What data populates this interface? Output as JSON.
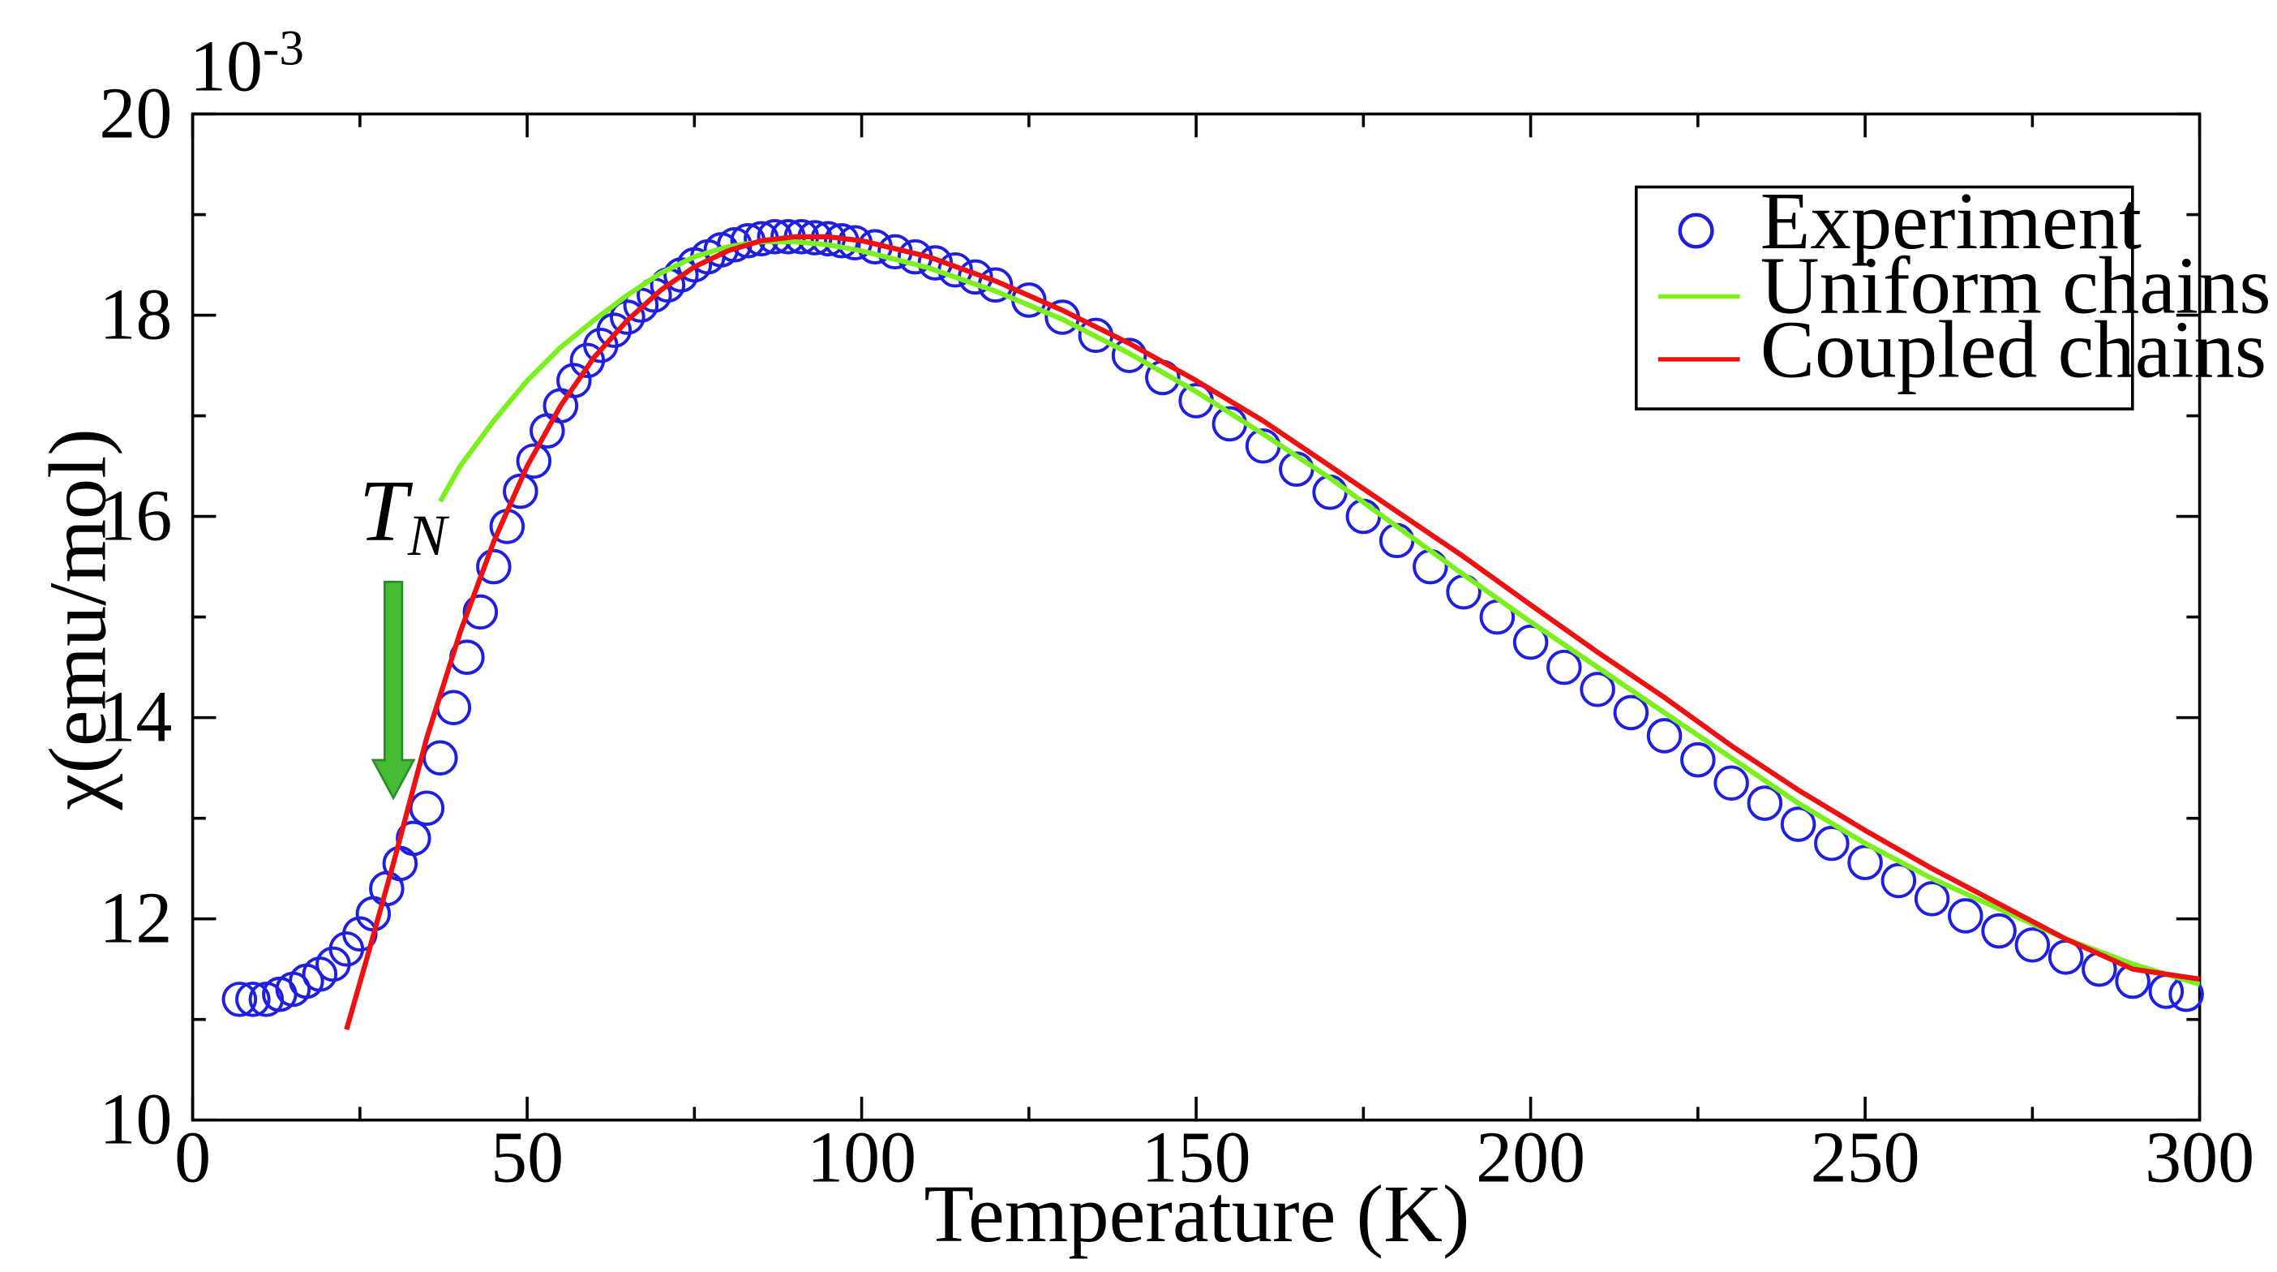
{
  "chart_data": {
    "type": "scatter",
    "title": "",
    "xlabel": "Temperature (K)",
    "ylabel": "χ(emu/mol)",
    "y_scale_label": "10",
    "y_scale_exponent": "-3",
    "xlim": [
      0,
      300
    ],
    "ylim": [
      10,
      20
    ],
    "x_major_ticks": [
      0,
      50,
      100,
      150,
      200,
      250,
      300
    ],
    "x_tick_labels": [
      "0",
      "50",
      "100",
      "150",
      "200",
      "250",
      "300"
    ],
    "x_minor_step": 25,
    "y_major_ticks": [
      10,
      12,
      14,
      16,
      18,
      20
    ],
    "y_tick_labels": [
      "10",
      "12",
      "14",
      "16",
      "18",
      "20"
    ],
    "y_minor_step": 1,
    "legend": {
      "position": "top-right",
      "entries": [
        {
          "label": "Experiment",
          "marker": "circle",
          "color": "#1f1fe0"
        },
        {
          "label": "Uniform chains",
          "marker": "line",
          "color": "#7cf01e"
        },
        {
          "label": "Coupled chains",
          "marker": "line",
          "color": "#ee1111"
        }
      ]
    },
    "annotation": {
      "label": "T",
      "subscript": "N",
      "arrow_color": "#44bb33",
      "x": 30,
      "y_from": 15.35,
      "y_to": 13.2
    },
    "series": [
      {
        "name": "Experiment",
        "kind": "markers",
        "color": "#1f1fe0",
        "points": [
          [
            7,
            11.2
          ],
          [
            9,
            11.2
          ],
          [
            11,
            11.2
          ],
          [
            13,
            11.25
          ],
          [
            15,
            11.3
          ],
          [
            17,
            11.38
          ],
          [
            19,
            11.45
          ],
          [
            21,
            11.55
          ],
          [
            23,
            11.7
          ],
          [
            25,
            11.85
          ],
          [
            27,
            12.05
          ],
          [
            29,
            12.3
          ],
          [
            31,
            12.55
          ],
          [
            33,
            12.8
          ],
          [
            35,
            13.1
          ],
          [
            37,
            13.6
          ],
          [
            39,
            14.1
          ],
          [
            41,
            14.6
          ],
          [
            43,
            15.05
          ],
          [
            45,
            15.5
          ],
          [
            47,
            15.9
          ],
          [
            49,
            16.25
          ],
          [
            51,
            16.55
          ],
          [
            53,
            16.85
          ],
          [
            55,
            17.1
          ],
          [
            57,
            17.35
          ],
          [
            59,
            17.55
          ],
          [
            61,
            17.7
          ],
          [
            63,
            17.85
          ],
          [
            65,
            17.98
          ],
          [
            67,
            18.1
          ],
          [
            69,
            18.2
          ],
          [
            71,
            18.3
          ],
          [
            73,
            18.4
          ],
          [
            75,
            18.5
          ],
          [
            77,
            18.58
          ],
          [
            79,
            18.65
          ],
          [
            81,
            18.7
          ],
          [
            83,
            18.74
          ],
          [
            85,
            18.76
          ],
          [
            87,
            18.78
          ],
          [
            89,
            18.78
          ],
          [
            91,
            18.78
          ],
          [
            93,
            18.77
          ],
          [
            95,
            18.76
          ],
          [
            97,
            18.74
          ],
          [
            99,
            18.72
          ],
          [
            102,
            18.68
          ],
          [
            105,
            18.63
          ],
          [
            108,
            18.58
          ],
          [
            111,
            18.52
          ],
          [
            114,
            18.45
          ],
          [
            117,
            18.38
          ],
          [
            120,
            18.3
          ],
          [
            125,
            18.15
          ],
          [
            130,
            17.98
          ],
          [
            135,
            17.8
          ],
          [
            140,
            17.6
          ],
          [
            145,
            17.38
          ],
          [
            150,
            17.15
          ],
          [
            155,
            16.92
          ],
          [
            160,
            16.7
          ],
          [
            165,
            16.47
          ],
          [
            170,
            16.24
          ],
          [
            175,
            16.0
          ],
          [
            180,
            15.76
          ],
          [
            185,
            15.5
          ],
          [
            190,
            15.25
          ],
          [
            195,
            15.0
          ],
          [
            200,
            14.75
          ],
          [
            205,
            14.5
          ],
          [
            210,
            14.28
          ],
          [
            215,
            14.05
          ],
          [
            220,
            13.82
          ],
          [
            225,
            13.58
          ],
          [
            230,
            13.35
          ],
          [
            235,
            13.15
          ],
          [
            240,
            12.94
          ],
          [
            245,
            12.75
          ],
          [
            250,
            12.56
          ],
          [
            255,
            12.38
          ],
          [
            260,
            12.2
          ],
          [
            265,
            12.03
          ],
          [
            270,
            11.88
          ],
          [
            275,
            11.74
          ],
          [
            280,
            11.62
          ],
          [
            285,
            11.5
          ],
          [
            290,
            11.38
          ],
          [
            295,
            11.28
          ],
          [
            298,
            11.25
          ]
        ]
      },
      {
        "name": "Uniform chains",
        "kind": "line",
        "color": "#7cf01e",
        "points": [
          [
            37,
            16.15
          ],
          [
            40,
            16.5
          ],
          [
            45,
            16.95
          ],
          [
            50,
            17.35
          ],
          [
            55,
            17.68
          ],
          [
            60,
            17.95
          ],
          [
            65,
            18.2
          ],
          [
            70,
            18.42
          ],
          [
            75,
            18.58
          ],
          [
            80,
            18.68
          ],
          [
            85,
            18.73
          ],
          [
            90,
            18.73
          ],
          [
            95,
            18.7
          ],
          [
            100,
            18.64
          ],
          [
            110,
            18.47
          ],
          [
            120,
            18.24
          ],
          [
            130,
            17.96
          ],
          [
            140,
            17.62
          ],
          [
            150,
            17.24
          ],
          [
            160,
            16.82
          ],
          [
            170,
            16.38
          ],
          [
            180,
            15.9
          ],
          [
            190,
            15.42
          ],
          [
            200,
            14.95
          ],
          [
            210,
            14.5
          ],
          [
            220,
            14.05
          ],
          [
            230,
            13.6
          ],
          [
            240,
            13.15
          ],
          [
            250,
            12.75
          ],
          [
            260,
            12.4
          ],
          [
            270,
            12.1
          ],
          [
            280,
            11.8
          ],
          [
            290,
            11.55
          ],
          [
            300,
            11.35
          ]
        ]
      },
      {
        "name": "Coupled chains",
        "kind": "line",
        "color": "#ee1111",
        "points": [
          [
            23,
            10.9
          ],
          [
            26,
            11.6
          ],
          [
            30,
            12.55
          ],
          [
            35,
            13.8
          ],
          [
            40,
            14.85
          ],
          [
            45,
            15.75
          ],
          [
            50,
            16.5
          ],
          [
            55,
            17.1
          ],
          [
            60,
            17.58
          ],
          [
            65,
            17.95
          ],
          [
            70,
            18.25
          ],
          [
            75,
            18.48
          ],
          [
            80,
            18.64
          ],
          [
            85,
            18.74
          ],
          [
            90,
            18.78
          ],
          [
            95,
            18.78
          ],
          [
            100,
            18.74
          ],
          [
            110,
            18.58
          ],
          [
            120,
            18.34
          ],
          [
            130,
            18.05
          ],
          [
            140,
            17.72
          ],
          [
            150,
            17.35
          ],
          [
            160,
            16.95
          ],
          [
            170,
            16.5
          ],
          [
            180,
            16.05
          ],
          [
            190,
            15.6
          ],
          [
            200,
            15.12
          ],
          [
            210,
            14.65
          ],
          [
            220,
            14.2
          ],
          [
            230,
            13.72
          ],
          [
            240,
            13.28
          ],
          [
            250,
            12.88
          ],
          [
            260,
            12.5
          ],
          [
            270,
            12.15
          ],
          [
            280,
            11.8
          ],
          [
            290,
            11.5
          ],
          [
            300,
            11.4
          ]
        ]
      }
    ]
  }
}
